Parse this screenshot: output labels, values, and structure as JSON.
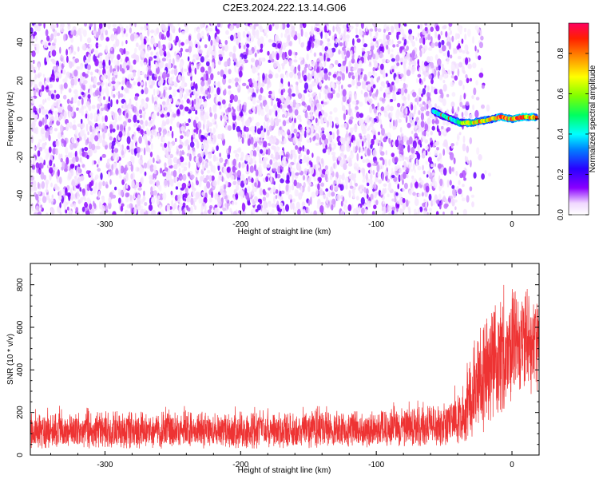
{
  "title": "C2E3.2024.222.13.14.G06",
  "chart_data": [
    {
      "type": "heatmap",
      "xlabel": "Height of straight line (km)",
      "ylabel": "Frequency (Hz)",
      "xlim": [
        -355,
        20
      ],
      "ylim": [
        -50,
        50
      ],
      "xticks": [
        -300,
        -200,
        -100,
        0
      ],
      "yticks": [
        -40,
        -20,
        0,
        20,
        40
      ],
      "colorbar": {
        "label": "Normalized spectral amplitude",
        "range": [
          0,
          0.95
        ],
        "ticks": [
          0.0,
          0.2,
          0.4,
          0.6,
          0.8
        ]
      },
      "noise_region": {
        "x_range": [
          -355,
          -35
        ],
        "amplitude_range": [
          0.0,
          0.15
        ]
      },
      "signal_trace": {
        "description_points": [
          [
            -58,
            4
          ],
          [
            -52,
            2
          ],
          [
            -45,
            0
          ],
          [
            -38,
            -2
          ],
          [
            -30,
            -2
          ],
          [
            -22,
            -1
          ],
          [
            -15,
            0
          ],
          [
            -8,
            1
          ],
          [
            0,
            0
          ],
          [
            8,
            1
          ],
          [
            18,
            1
          ]
        ],
        "peak_amplitude": 0.95
      }
    },
    {
      "type": "line",
      "xlabel": "Height of straight line (km)",
      "ylabel": "SNR (10 * v/v)",
      "xlim": [
        -355,
        20
      ],
      "ylim": [
        0,
        900
      ],
      "xticks": [
        -300,
        -200,
        -100,
        0
      ],
      "yticks": [
        0,
        200,
        400,
        600,
        800
      ],
      "color": "#ee3333",
      "envelope": [
        {
          "x": -355,
          "low": 30,
          "high": 230
        },
        {
          "x": -300,
          "low": 30,
          "high": 240
        },
        {
          "x": -200,
          "low": 30,
          "high": 230
        },
        {
          "x": -100,
          "low": 35,
          "high": 240
        },
        {
          "x": -50,
          "low": 40,
          "high": 280
        },
        {
          "x": -35,
          "low": 60,
          "high": 380
        },
        {
          "x": -25,
          "low": 80,
          "high": 700
        },
        {
          "x": -15,
          "low": 150,
          "high": 800
        },
        {
          "x": 0,
          "low": 250,
          "high": 880
        },
        {
          "x": 20,
          "low": 300,
          "high": 880
        }
      ]
    }
  ]
}
